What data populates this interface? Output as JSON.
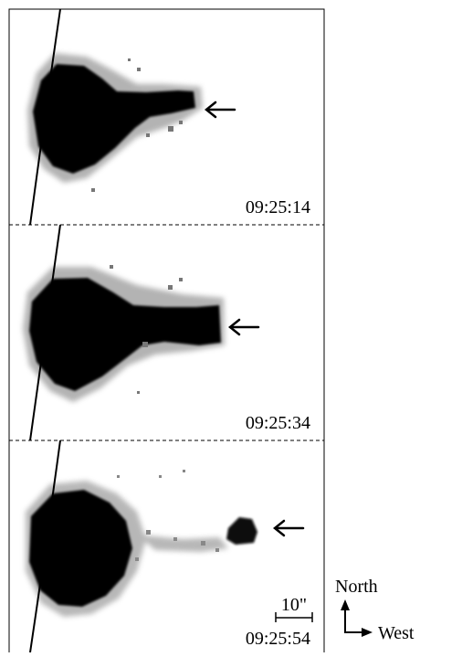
{
  "figure": {
    "panels": [
      {
        "timestamp": "09:25:14"
      },
      {
        "timestamp": "09:25:34"
      },
      {
        "timestamp": "09:25:54"
      }
    ],
    "scale_bar_label": "10\"",
    "compass": {
      "north_label": "North",
      "west_label": "West"
    }
  }
}
